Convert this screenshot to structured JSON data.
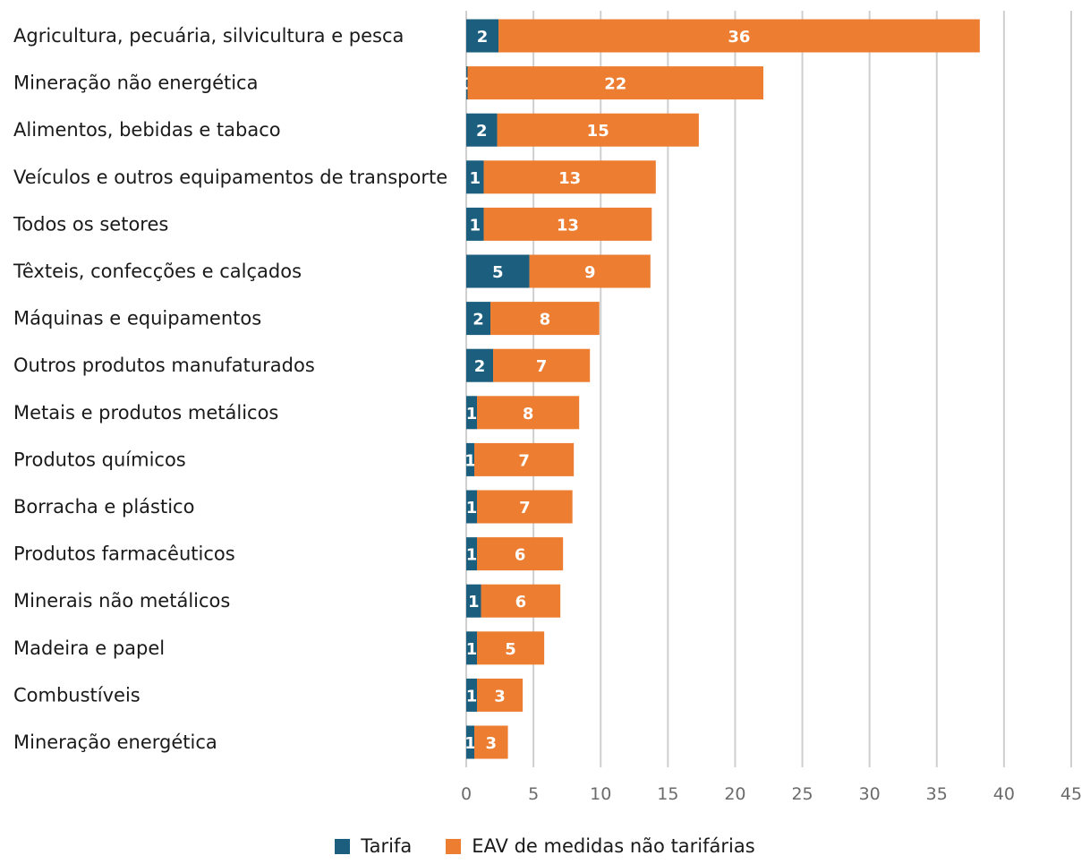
{
  "chart_data": {
    "type": "bar",
    "orientation": "horizontal",
    "stacked": true,
    "categories": [
      "Agricultura, pecuária, silvicultura e pesca",
      "Mineração não energética",
      "Alimentos, bebidas e tabaco",
      "Veículos e outros equipamentos de transporte",
      "Todos os setores",
      "Têxteis, confecções e calçados",
      "Máquinas e equipamentos",
      "Outros produtos manufaturados",
      "Metais e produtos metálicos",
      "Produtos químicos",
      "Borracha e plástico",
      "Produtos farmacêuticos",
      "Minerais não metálicos",
      "Madeira e papel",
      "Combustíveis",
      "Mineração energética"
    ],
    "series": [
      {
        "name": "Tarifa",
        "color": "#1b5e7e",
        "values": [
          2.4,
          0.1,
          2.3,
          1.3,
          1.3,
          4.7,
          1.8,
          2.0,
          0.8,
          0.6,
          0.8,
          0.8,
          1.1,
          0.8,
          0.8,
          0.6
        ],
        "labels": [
          "2",
          "0",
          "2",
          "1",
          "1",
          "5",
          "2",
          "2",
          "1",
          "1",
          "1",
          "1",
          "1",
          "1",
          "1",
          "1"
        ]
      },
      {
        "name": "EAV de medidas não tarifárias",
        "color": "#ed7d31",
        "values": [
          35.8,
          22.0,
          15.0,
          12.8,
          12.5,
          9.0,
          8.1,
          7.2,
          7.6,
          7.4,
          7.1,
          6.4,
          5.9,
          5.0,
          3.4,
          2.5
        ],
        "labels": [
          "36",
          "22",
          "15",
          "13",
          "13",
          "9",
          "8",
          "7",
          "8",
          "7",
          "7",
          "6",
          "6",
          "5",
          "3",
          "3"
        ]
      }
    ],
    "xlim": [
      0,
      45
    ],
    "xticks": [
      "0",
      "5",
      "10",
      "15",
      "20",
      "25",
      "30",
      "35",
      "40",
      "45"
    ],
    "grid": "vertical",
    "legend": "bottom-center",
    "grid_color": "#cfcfcf",
    "title": "",
    "xlabel": "",
    "ylabel": ""
  }
}
